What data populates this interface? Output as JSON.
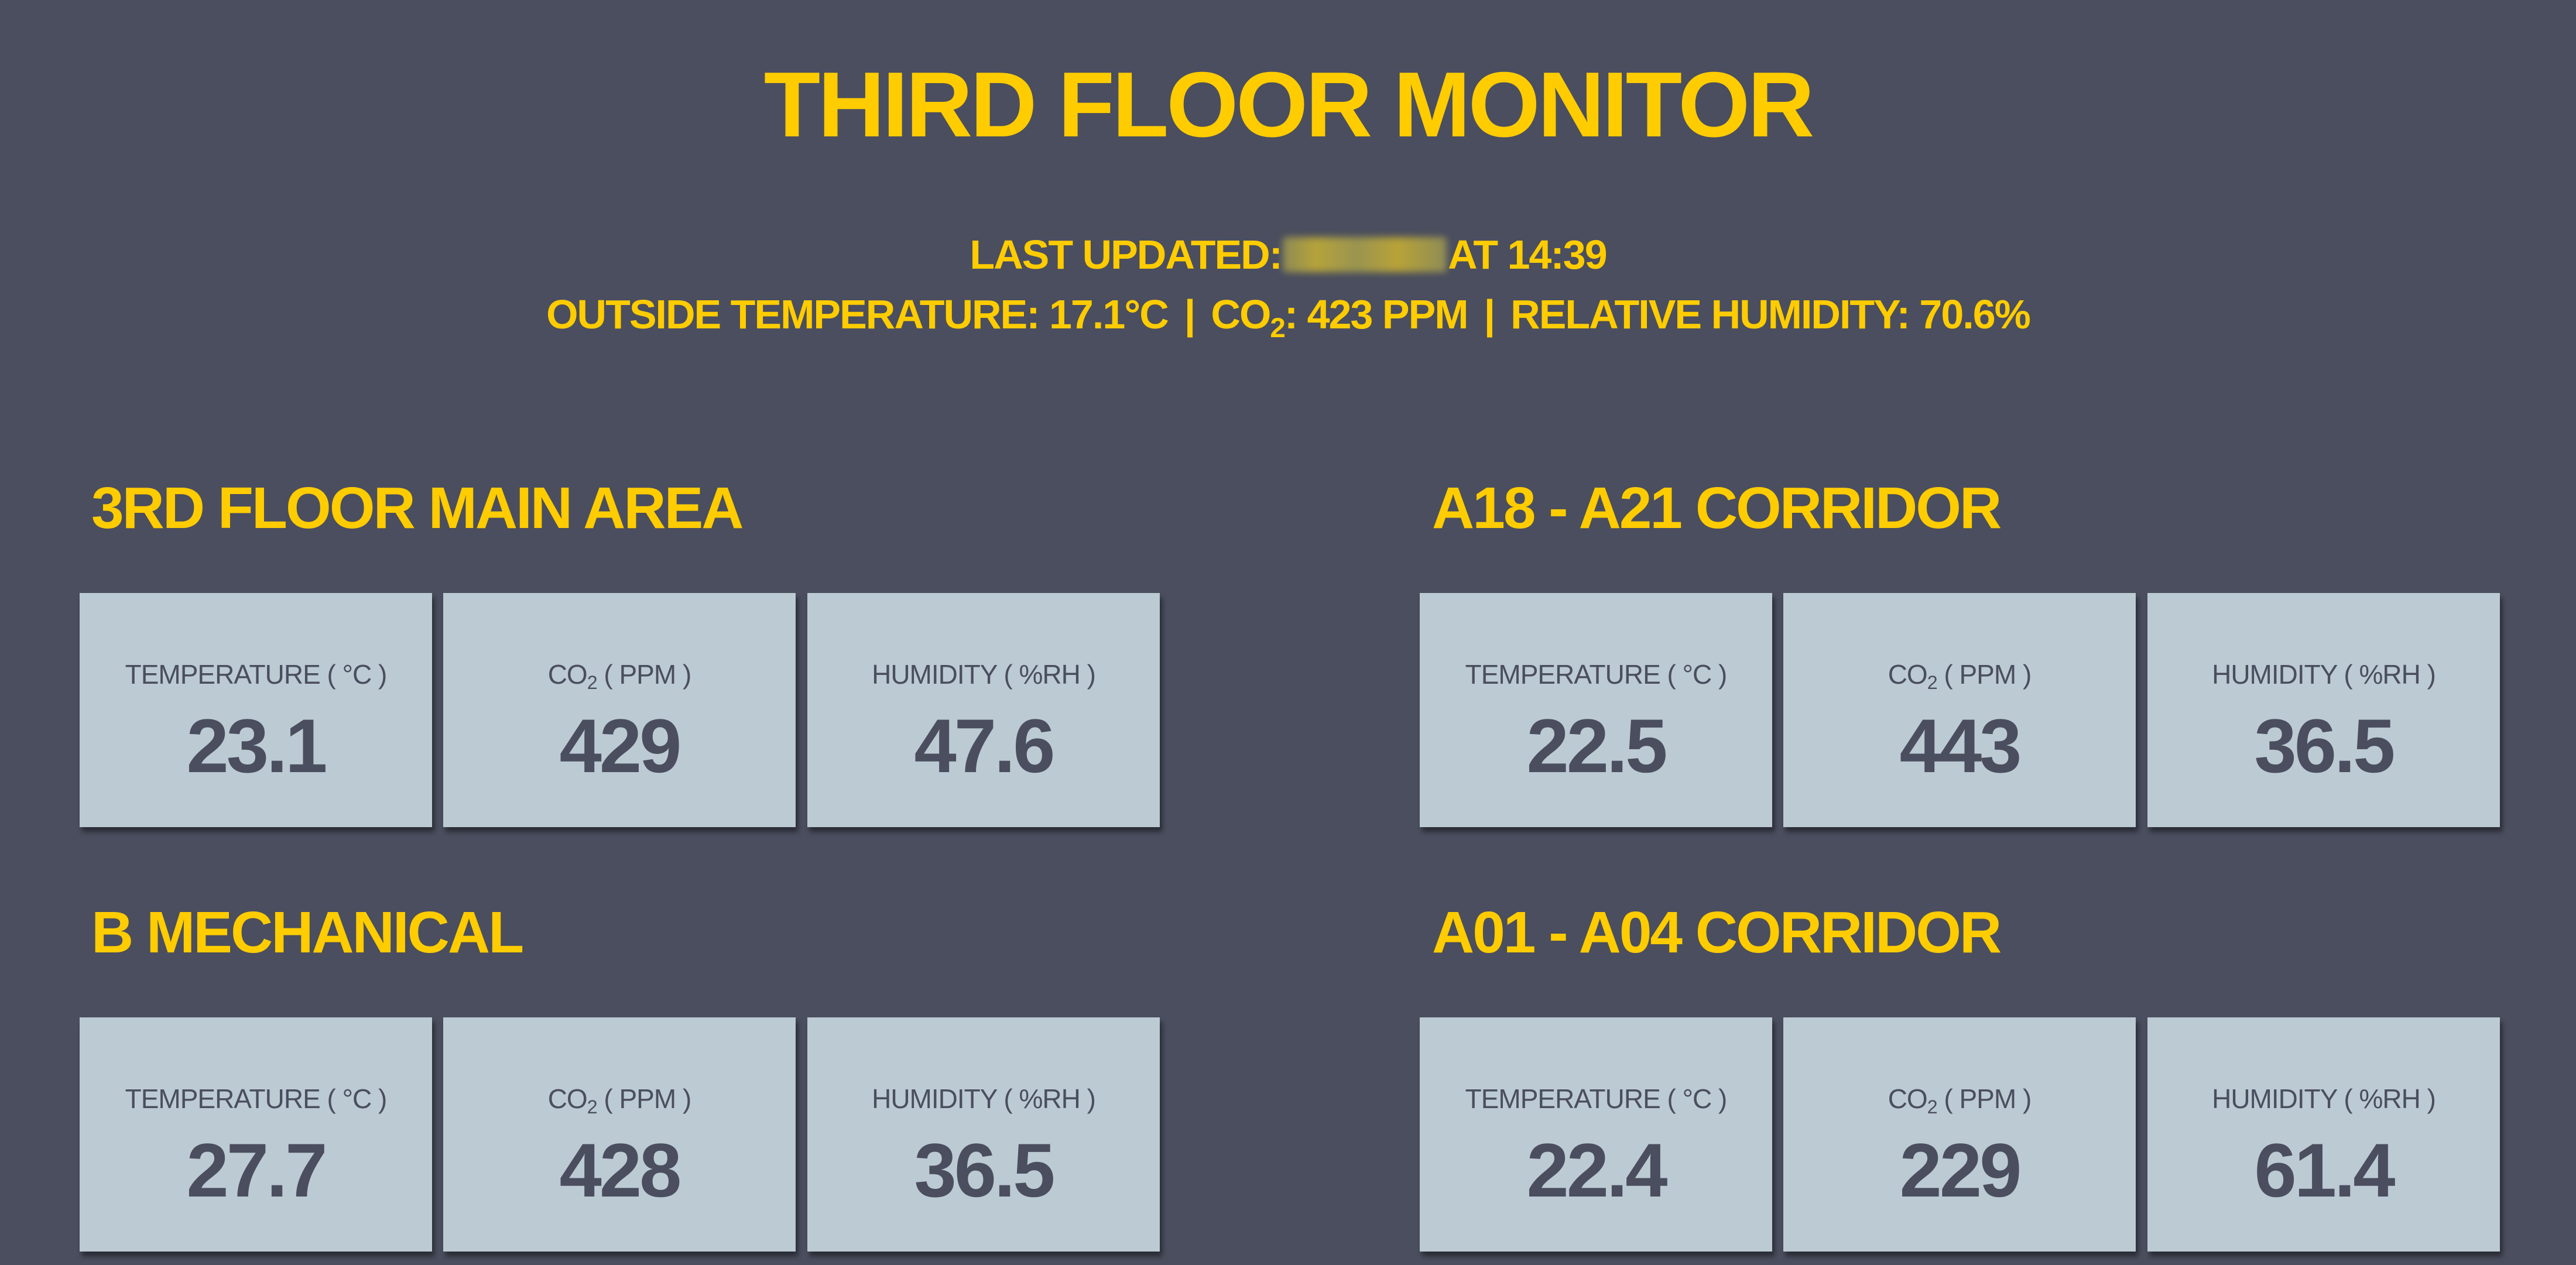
{
  "header": {
    "title": "THIRD FLOOR MONITOR",
    "last_updated_label": "LAST UPDATED:",
    "last_updated_time": "AT 14:39",
    "outside_temperature": "OUTSIDE TEMPERATURE: 17.1°C",
    "co2_prefix": "CO",
    "co2_sub": "2",
    "co2_value": ": 423 PPM",
    "separator": "|",
    "relative_humidity": "RELATIVE HUMIDITY: 70.6%"
  },
  "labels": {
    "temperature": "TEMPERATURE ( °C )",
    "co2_prefix": "CO",
    "co2_sub": "2",
    "co2_suffix": " ( PPM )",
    "humidity": "HUMIDITY ( %RH )"
  },
  "zones": [
    {
      "name": "3RD FLOOR MAIN AREA",
      "temperature": "23.1",
      "co2": "429",
      "humidity": "47.6"
    },
    {
      "name": "A18 - A21 CORRIDOR",
      "temperature": "22.5",
      "co2": "443",
      "humidity": "36.5"
    },
    {
      "name": "B MECHANICAL",
      "temperature": "27.7",
      "co2": "428",
      "humidity": "36.5"
    },
    {
      "name": "A01 - A04 CORRIDOR",
      "temperature": "22.4",
      "co2": "229",
      "humidity": "61.4"
    }
  ],
  "colors": {
    "background": "#4a4e5e",
    "accent": "#ffcc00",
    "card": "#bccad3",
    "card_text": "#4a4e5e"
  }
}
